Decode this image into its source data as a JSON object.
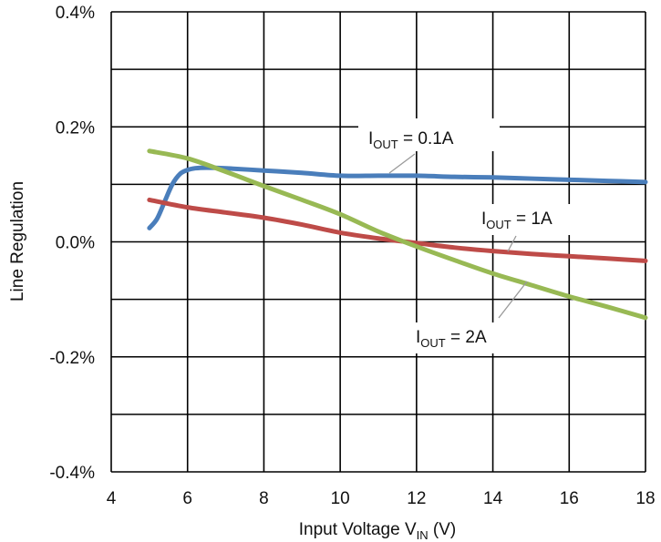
{
  "chart_data": {
    "type": "line",
    "title": "",
    "xlabel": {
      "main": "Input Voltage V",
      "sub": "IN",
      "tail": " (V)"
    },
    "ylabel": "Line Regulation",
    "xlim": [
      4,
      18
    ],
    "ylim": [
      -0.4,
      0.4
    ],
    "x_ticks": [
      4,
      6,
      8,
      10,
      12,
      14,
      16,
      18
    ],
    "x_tick_labels": [
      "4",
      "6",
      "8",
      "10",
      "12",
      "14",
      "16",
      "18"
    ],
    "y_ticks": [
      0.4,
      0.2,
      0.0,
      -0.2,
      -0.4
    ],
    "y_tick_labels": [
      "0.4%",
      "0.2%",
      "0.0%",
      "-0.2%",
      "-0.4%"
    ],
    "y_gridlines": [
      0.4,
      0.3,
      0.2,
      0.1,
      0.0,
      -0.1,
      -0.2,
      -0.3,
      -0.4
    ],
    "x_gridlines": [
      4,
      6,
      8,
      10,
      12,
      14,
      16,
      18
    ],
    "grid": true,
    "legend": "none",
    "series": [
      {
        "name": "IOUT = 0.1A",
        "color": "#4a7ebb",
        "x": [
          5.0,
          5.2,
          5.4,
          5.6,
          5.8,
          6.0,
          6.2,
          6.5,
          7.0,
          8.0,
          9.0,
          10.0,
          11.0,
          12.0,
          13.0,
          14.0,
          15.0,
          16.0,
          17.0,
          18.0
        ],
        "y": [
          0.024,
          0.04,
          0.07,
          0.1,
          0.118,
          0.125,
          0.128,
          0.129,
          0.128,
          0.124,
          0.12,
          0.115,
          0.115,
          0.115,
          0.113,
          0.112,
          0.11,
          0.108,
          0.106,
          0.104
        ]
      },
      {
        "name": "IOUT = 1A",
        "color": "#be4b48",
        "x": [
          5.0,
          6.0,
          7.0,
          8.0,
          9.0,
          10.0,
          11.0,
          12.0,
          13.0,
          14.0,
          15.0,
          16.0,
          17.0,
          18.0
        ],
        "y": [
          0.073,
          0.06,
          0.051,
          0.042,
          0.03,
          0.016,
          0.006,
          -0.002,
          -0.01,
          -0.016,
          -0.021,
          -0.025,
          -0.029,
          -0.033
        ]
      },
      {
        "name": "IOUT = 2A",
        "color": "#98b954",
        "x": [
          5.0,
          6.0,
          7.0,
          8.0,
          9.0,
          10.0,
          11.0,
          12.0,
          13.0,
          14.0,
          15.0,
          16.0,
          17.0,
          18.0
        ],
        "y": [
          0.158,
          0.145,
          0.122,
          0.097,
          0.073,
          0.048,
          0.018,
          -0.008,
          -0.032,
          -0.055,
          -0.075,
          -0.095,
          -0.113,
          -0.132
        ]
      }
    ],
    "annotations": [
      {
        "main": "I",
        "sub": "OUT",
        "tail": " = 0.1A"
      },
      {
        "main": "I",
        "sub": "OUT",
        "tail": " = 1A"
      },
      {
        "main": "I",
        "sub": "OUT",
        "tail": " = 2A"
      }
    ]
  }
}
